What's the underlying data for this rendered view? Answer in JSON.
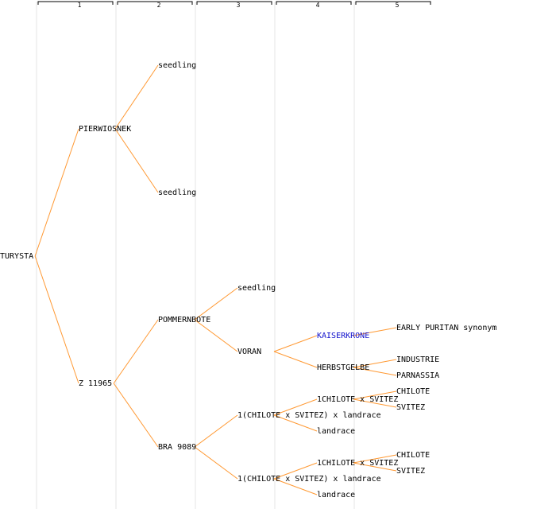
{
  "generations": [
    "1",
    "2",
    "3",
    "4",
    "5"
  ],
  "colors": {
    "edge": "#ff9933",
    "column_line": "#e4e4e4",
    "header_line": "#000000",
    "link": "#1010cc"
  },
  "nodes": {
    "root": "TURYSTA",
    "g2_pierwiosnek": "PIERWIOSNEK",
    "g2_z11965": "Z 11965",
    "g3_seedling_a": "seedling",
    "g3_seedling_b": "seedling",
    "g3_pommernbote": "POMMERNBOTE",
    "g3_bra9089": "BRA 9089",
    "g4_seedling": "seedling",
    "g4_voran": "VORAN",
    "g4_cross_a": "1(CHILOTE x SVITEZ) x landrace",
    "g4_cross_b": "1(CHILOTE x SVITEZ) x landrace",
    "g5_kaiserkrone": "KAISERKRONE",
    "g5_herbstgelbe": "HERBSTGELBE",
    "g5_chilote_svitez_a": "1CHILOTE x SVITEZ",
    "g5_landrace_a": "landrace",
    "g5_chilote_svitez_b": "1CHILOTE x SVITEZ",
    "g5_landrace_b": "landrace",
    "g6_early_puritan": "EARLY PURITAN synonym",
    "g6_industrie": "INDUSTRIE",
    "g6_parnassia": "PARNASSIA",
    "g6_chilote_a": "CHILOTE",
    "g6_svitez_a": "SVITEZ",
    "g6_chilote_b": "CHILOTE",
    "g6_svitez_b": "SVITEZ"
  }
}
